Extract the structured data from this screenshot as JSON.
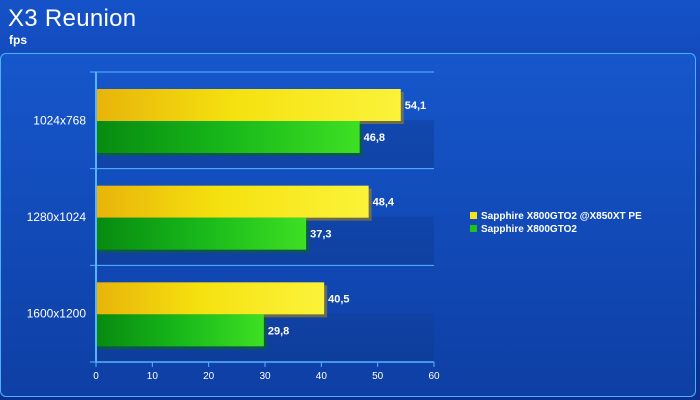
{
  "chart_data": {
    "type": "bar",
    "orientation": "horizontal",
    "title": "X3 Reunion",
    "subtitle": "fps",
    "categories": [
      "1024x768",
      "1280x1024",
      "1600x1200"
    ],
    "series": [
      {
        "name": "Sapphire X800GTO2 @X850XT PE",
        "values": [
          54.1,
          48.4,
          40.5
        ],
        "labels": [
          "54,1",
          "48,4",
          "40,5"
        ],
        "color": "#f5e617"
      },
      {
        "name": "Sapphire X800GTO2",
        "values": [
          46.8,
          37.3,
          29.8
        ],
        "labels": [
          "46,8",
          "37,3",
          "29,8"
        ],
        "color": "#22c21c"
      }
    ],
    "xlim": [
      0,
      60
    ],
    "xticks": [
      0,
      10,
      20,
      30,
      40,
      50,
      60
    ],
    "legend_position": "right",
    "grid": true,
    "background_color": "#0d3ea8",
    "axis_color": "#4fb0ff"
  }
}
